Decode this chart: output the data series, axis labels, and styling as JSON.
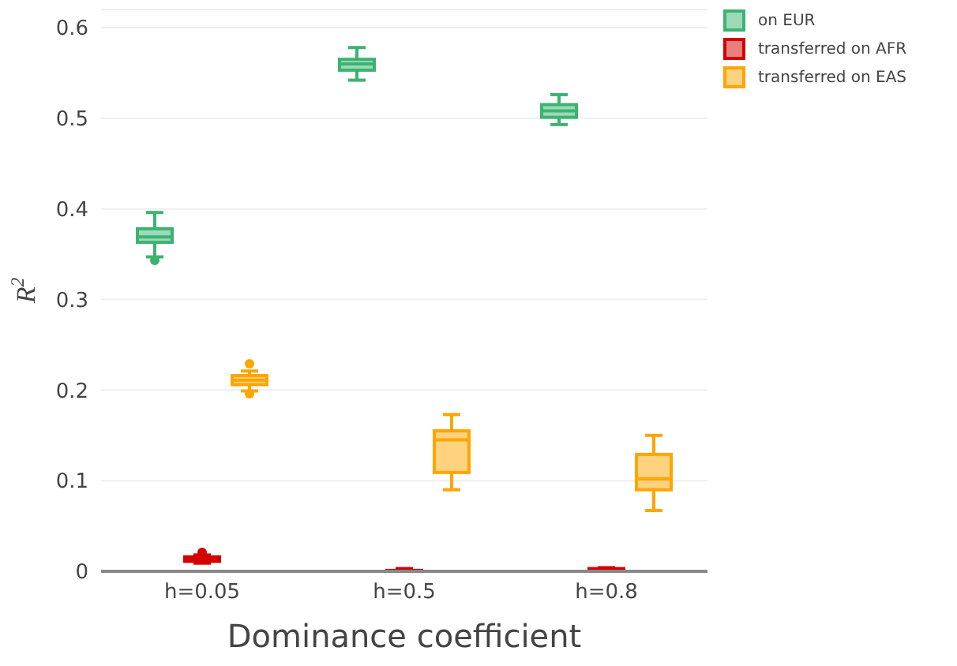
{
  "chart_data": {
    "type": "box",
    "xlabel": "Dominance coefficient",
    "ylabel": "R$^{2}$",
    "categories": [
      "h=0.05",
      "h=0.5",
      "h=0.8"
    ],
    "ylim": [
      0,
      0.62
    ],
    "yticks": [
      0,
      0.1,
      0.2,
      0.3,
      0.4,
      0.5,
      0.6
    ],
    "grid": "y",
    "legend": "top right",
    "series": [
      {
        "name": "on EUR",
        "color": "#3cb371",
        "boxes": [
          {
            "low": 0.347,
            "q1": 0.363,
            "median": 0.369,
            "q3": 0.378,
            "high": 0.396,
            "outliers": [
              0.343
            ]
          },
          {
            "low": 0.542,
            "q1": 0.553,
            "median": 0.56,
            "q3": 0.565,
            "high": 0.578
          },
          {
            "low": 0.493,
            "q1": 0.501,
            "median": 0.508,
            "q3": 0.515,
            "high": 0.526
          }
        ]
      },
      {
        "name": "transferred on AFR",
        "color": "#d40000",
        "boxes": [
          {
            "low": 0.009,
            "q1": 0.011,
            "median": 0.013,
            "q3": 0.016,
            "high": 0.018,
            "outliers": [
              0.021
            ]
          },
          {
            "low": 0,
            "q1": 0,
            "median": 0.0005,
            "q3": 0.001,
            "high": 0.003
          },
          {
            "low": 0,
            "q1": 0.001,
            "median": 0.002,
            "q3": 0.003,
            "high": 0.004
          }
        ]
      },
      {
        "name": "transferred on EAS",
        "color": "#ffa500",
        "boxes": [
          {
            "low": 0.199,
            "q1": 0.206,
            "median": 0.211,
            "q3": 0.216,
            "high": 0.221,
            "outliers": [
              0.229,
              0.196
            ]
          },
          {
            "low": 0.09,
            "q1": 0.109,
            "median": 0.145,
            "q3": 0.155,
            "high": 0.173
          },
          {
            "low": 0.067,
            "q1": 0.09,
            "median": 0.102,
            "q3": 0.129,
            "high": 0.15
          }
        ]
      }
    ]
  }
}
